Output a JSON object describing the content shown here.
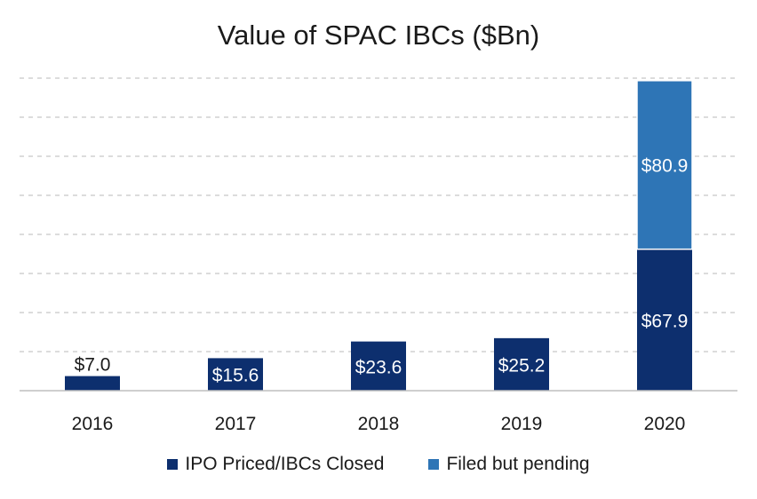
{
  "colors": {
    "series_1": "#0d2f6e",
    "series_2": "#2e75b6",
    "grid": "#c8c8c8",
    "axis": "#bfbfbf"
  },
  "chart_data": {
    "type": "bar",
    "stacked": true,
    "title": "Value of SPAC IBCs ($Bn)",
    "xlabel": "",
    "ylabel": "",
    "categories": [
      "2016",
      "2017",
      "2018",
      "2019",
      "2020"
    ],
    "ylim": [
      0,
      150
    ],
    "grid": true,
    "legend_position": "bottom",
    "series": [
      {
        "name": "IPO Priced/IBCs Closed",
        "values": [
          7.0,
          15.6,
          23.6,
          25.2,
          67.9
        ],
        "labels": [
          "$7.0",
          "$15.6",
          "$23.6",
          "$25.2",
          "$67.9"
        ]
      },
      {
        "name": "Filed but pending",
        "values": [
          null,
          null,
          null,
          null,
          80.9
        ],
        "labels": [
          null,
          null,
          null,
          null,
          "$80.9"
        ]
      }
    ]
  }
}
